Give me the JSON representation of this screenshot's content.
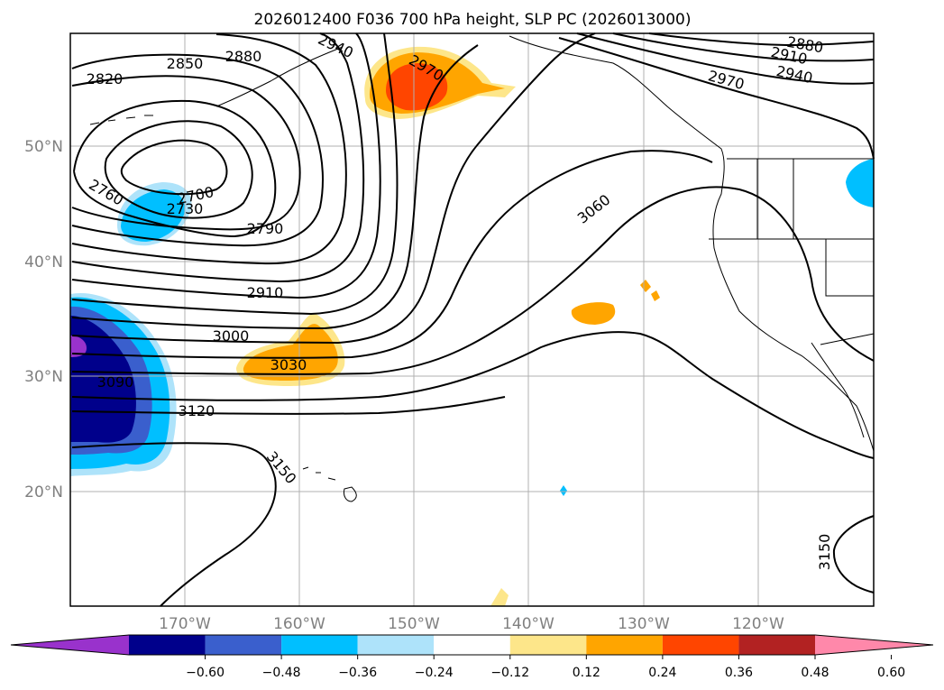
{
  "title": "2026012400 F036 700 hPa height, SLP PC (2026013000)",
  "lat_labels": [
    "50°N",
    "40°N",
    "30°N",
    "20°N"
  ],
  "lon_labels": [
    "170°W",
    "160°W",
    "150°W",
    "140°W",
    "130°W",
    "120°W"
  ],
  "contour_labels": {
    "c2820": "2820",
    "c2850": "2850",
    "c2880a": "2880",
    "c2940a": "2940",
    "c2970a": "2970",
    "c2880b": "2880",
    "c2910a": "2910",
    "c2940b": "2940",
    "c2970b": "2970",
    "c2760": "2760",
    "c2700": "2700",
    "c2730": "2730",
    "c2790": "2790",
    "c2910b": "2910",
    "c3000": "3000",
    "c3030": "3030",
    "c3060": "3060",
    "c3090": "3090",
    "c3120": "3120",
    "c3150a": "3150",
    "c3150b": "3150"
  },
  "colorbar": {
    "ticks": [
      "−0.60",
      "−0.48",
      "−0.36",
      "−0.24",
      "−0.12",
      "0.12",
      "0.24",
      "0.36",
      "0.48",
      "0.60"
    ],
    "colors": [
      "#9932cc",
      "#00008b",
      "#3a5fcd",
      "#00bfff",
      "#aee3fa",
      "#ffffff",
      "#fde68a",
      "#ffa500",
      "#ff4500",
      "#b22222",
      "#ff88aa"
    ]
  }
}
